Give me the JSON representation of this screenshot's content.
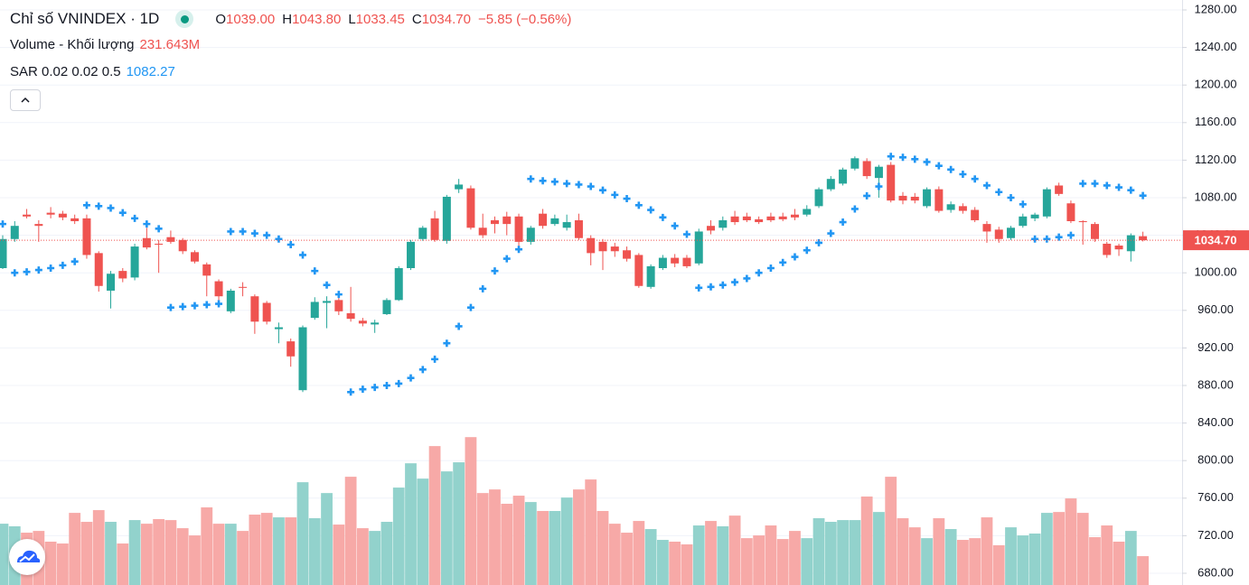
{
  "chart_data": {
    "type": "candlestick",
    "title": "Chỉ số VNINDEX · 1D",
    "legend": {
      "open_label": "O",
      "open": "1039.00",
      "high_label": "H",
      "high": "1043.80",
      "low_label": "L",
      "low": "1033.45",
      "close_label": "C",
      "close": "1034.70",
      "change": "−5.85 (−0.56%)"
    },
    "volume_legend": {
      "name": "Volume - Khối lượng",
      "value": "231.643M"
    },
    "sar_legend": {
      "name": "SAR 0.02 0.02 0.5",
      "value": "1082.27"
    },
    "up_color": "#26a69a",
    "down_color": "#ef5350",
    "volume_up_color": "#92d2cc",
    "volume_down_color": "#f7a9a7",
    "sar_color": "#2196f3",
    "open": [
      1005,
      1036,
      1062,
      1052,
      1064,
      1063,
      1058,
      1058,
      1021,
      981,
      1002,
      995,
      1037,
      1031,
      1038,
      1035,
      1022,
      1009,
      991,
      959,
      985,
      975,
      968,
      940,
      927,
      875,
      952,
      968,
      971,
      957,
      949,
      945,
      956,
      971,
      1005,
      1036,
      1058,
      1034,
      1089,
      1090,
      1048,
      1056,
      1060,
      1060,
      1033,
      1063,
      1052,
      1048,
      1056,
      1037,
      1033,
      1028,
      1024,
      1019,
      985,
      1005,
      1016,
      1016,
      1010,
      1050,
      1048,
      1060,
      1060,
      1057,
      1060,
      1060,
      1062,
      1062,
      1071,
      1089,
      1095,
      1111,
      1119,
      1101,
      1115,
      1082,
      1081,
      1071,
      1089,
      1067,
      1071,
      1067,
      1052,
      1046,
      1037,
      1050,
      1058,
      1060,
      1093,
      1074,
      1055,
      1052,
      1031,
      1029,
      1023,
      1039
    ],
    "high": [
      1040,
      1055,
      1068,
      1056,
      1070,
      1066,
      1062,
      1062,
      1023,
      1002,
      1005,
      1031,
      1048,
      1035,
      1045,
      1037,
      1024,
      1011,
      993,
      983,
      990,
      977,
      970,
      947,
      930,
      944,
      974,
      975,
      975,
      985,
      952,
      950,
      973,
      1007,
      1035,
      1050,
      1066,
      1083,
      1100,
      1093,
      1063,
      1060,
      1065,
      1063,
      1050,
      1068,
      1062,
      1062,
      1063,
      1040,
      1036,
      1032,
      1028,
      1021,
      1009,
      1019,
      1020,
      1019,
      1047,
      1056,
      1060,
      1066,
      1064,
      1060,
      1064,
      1064,
      1068,
      1072,
      1091,
      1103,
      1112,
      1124,
      1122,
      1115,
      1118,
      1086,
      1085,
      1091,
      1092,
      1076,
      1074,
      1070,
      1055,
      1049,
      1050,
      1063,
      1064,
      1091,
      1096,
      1077,
      1056,
      1054,
      1033,
      1031,
      1042,
      1043.8
    ],
    "low": [
      1004,
      1033,
      1058,
      1033,
      1058,
      1056,
      1052,
      1015,
      980,
      962,
      990,
      992,
      1025,
      1000,
      1031,
      1020,
      1010,
      975,
      968,
      957,
      975,
      935,
      945,
      925,
      900,
      873,
      950,
      941,
      955,
      948,
      943,
      936,
      955,
      970,
      1003,
      1034,
      1033,
      1031,
      1085,
      1046,
      1037,
      1042,
      1040,
      1028,
      1030,
      1047,
      1050,
      1045,
      1035,
      1008,
      1003,
      1017,
      1012,
      984,
      983,
      1003,
      1006,
      1005,
      1008,
      1041,
      1045,
      1051,
      1054,
      1052,
      1054,
      1055,
      1056,
      1060,
      1069,
      1087,
      1093,
      1109,
      1100,
      1080,
      1075,
      1073,
      1074,
      1069,
      1064,
      1064,
      1063,
      1054,
      1032,
      1032,
      1035,
      1048,
      1055,
      1058,
      1082,
      1053,
      1030,
      1033,
      1016,
      1018,
      1012,
      1033.45
    ],
    "close": [
      1036,
      1050,
      1060,
      1050,
      1062,
      1059,
      1055,
      1019,
      986,
      999,
      994,
      1028,
      1027,
      1030,
      1033,
      1023,
      1012,
      997,
      975,
      981,
      984,
      948,
      948,
      942,
      911,
      942,
      969,
      970,
      959,
      951,
      946,
      947,
      971,
      1005,
      1033,
      1048,
      1035,
      1081,
      1094,
      1048,
      1040,
      1052,
      1052,
      1033,
      1048,
      1050,
      1058,
      1054,
      1037,
      1021,
      1023,
      1023,
      1015,
      986,
      1007,
      1016,
      1010,
      1007,
      1044,
      1045,
      1056,
      1054,
      1056,
      1054,
      1056,
      1057,
      1059,
      1068,
      1089,
      1100,
      1110,
      1122,
      1103,
      1113,
      1077,
      1077,
      1077,
      1089,
      1066,
      1073,
      1066,
      1056,
      1044,
      1036,
      1048,
      1060,
      1062,
      1089,
      1084,
      1055,
      1054,
      1036,
      1019,
      1025,
      1040,
      1034.7
    ],
    "sar": [
      1052,
      1000,
      1001,
      1003,
      1005,
      1008,
      1012,
      1072,
      1071,
      1069,
      1064,
      1058,
      1052,
      1047,
      963,
      964,
      965,
      966,
      967,
      1044,
      1044,
      1042,
      1040,
      1036,
      1030,
      1019,
      1002,
      987,
      977,
      873,
      876,
      878,
      880,
      882,
      888,
      897,
      908,
      925,
      943,
      963,
      983,
      1002,
      1015,
      1025,
      1100,
      1098,
      1097,
      1095,
      1094,
      1092,
      1088,
      1083,
      1079,
      1072,
      1067,
      1059,
      1050,
      1041,
      984,
      985,
      987,
      990,
      994,
      1000,
      1005,
      1011,
      1017,
      1024,
      1032,
      1042,
      1054,
      1068,
      1082,
      1092,
      1124,
      1123,
      1121,
      1118,
      1114,
      1110,
      1105,
      1100,
      1093,
      1086,
      1080,
      1073,
      1036,
      1036,
      1038,
      1040,
      1095,
      1095,
      1093,
      1091,
      1088,
      1082.27
    ],
    "volume": [
      492,
      471,
      420,
      434,
      348,
      333,
      579,
      507,
      601,
      507,
      333,
      521,
      492,
      529,
      521,
      456,
      398,
      623,
      492,
      492,
      434,
      565,
      579,
      543,
      543,
      825,
      536,
      738,
      485,
      869,
      456,
      434,
      507,
      782,
      977,
      854,
      1115,
      912,
      985,
      1187,
      738,
      767,
      652,
      717,
      666,
      594,
      594,
      702,
      767,
      847,
      594,
      492,
      420,
      514,
      449,
      362,
      348,
      326,
      478,
      514,
      471,
      557,
      376,
      398,
      478,
      369,
      434,
      376,
      536,
      507,
      521,
      521,
      710,
      586,
      869,
      536,
      463,
      376,
      536,
      449,
      362,
      376,
      543,
      319,
      463,
      398,
      413,
      579,
      586,
      695,
      579,
      384,
      478,
      348,
      434,
      231.643
    ],
    "volume_ylim": [
      0,
      1500
    ],
    "ylim": [
      680,
      1280
    ],
    "yticks": [
      {
        "value": 680,
        "label": "680.00"
      },
      {
        "value": 720,
        "label": "720.00"
      },
      {
        "value": 760,
        "label": "760.00"
      },
      {
        "value": 800,
        "label": "800.00"
      },
      {
        "value": 840,
        "label": "840.00"
      },
      {
        "value": 880,
        "label": "880.00"
      },
      {
        "value": 920,
        "label": "920.00"
      },
      {
        "value": 960,
        "label": "960.00"
      },
      {
        "value": 1000,
        "label": "1000.00"
      },
      {
        "value": 1040,
        "label": "1040.00"
      },
      {
        "value": 1080,
        "label": "1080.00"
      },
      {
        "value": 1120,
        "label": "1120.00"
      },
      {
        "value": 1160,
        "label": "1160.00"
      },
      {
        "value": 1200,
        "label": "1200.00"
      },
      {
        "value": 1240,
        "label": "1240.00"
      },
      {
        "value": 1280,
        "label": "1280.00"
      }
    ],
    "last_price": {
      "value": 1034.7,
      "label": "1034.70"
    },
    "grid": true
  }
}
